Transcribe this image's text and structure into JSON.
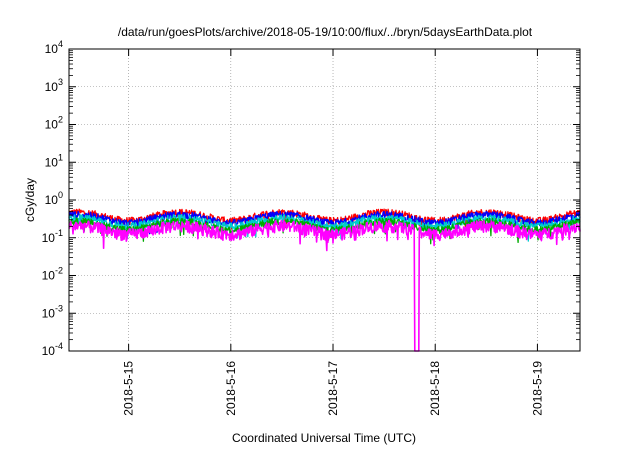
{
  "chart_data": {
    "type": "line",
    "title": "/data/run/goesPlots/archive/2018-05-19/10:00/flux/../bryn/5daysEarthData.plot",
    "xlabel": "Coordinated Universal Time (UTC)",
    "ylabel": "cGy/day",
    "yscale": "log",
    "ylim": [
      0.0001,
      10000
    ],
    "y_ticks": [
      {
        "value": 0.0001,
        "base": "10",
        "exp": "-4"
      },
      {
        "value": 0.001,
        "base": "10",
        "exp": "-3"
      },
      {
        "value": 0.01,
        "base": "10",
        "exp": "-2"
      },
      {
        "value": 0.1,
        "base": "10",
        "exp": "-1"
      },
      {
        "value": 1,
        "base": "10",
        "exp": "0"
      },
      {
        "value": 10,
        "base": "10",
        "exp": "1"
      },
      {
        "value": 100,
        "base": "10",
        "exp": "2"
      },
      {
        "value": 1000,
        "base": "10",
        "exp": "3"
      },
      {
        "value": 10000,
        "base": "10",
        "exp": "4"
      }
    ],
    "xlim": [
      "2018-05-14 10:00",
      "2018-05-19 10:00"
    ],
    "x_ticks": [
      {
        "value": "2018-05-15 00:00",
        "label": "2018-5-15"
      },
      {
        "value": "2018-05-16 00:00",
        "label": "2018-5-16"
      },
      {
        "value": "2018-05-17 00:00",
        "label": "2018-5-17"
      },
      {
        "value": "2018-05-18 00:00",
        "label": "2018-5-18"
      },
      {
        "value": "2018-05-19 00:00",
        "label": "2018-5-19"
      }
    ],
    "grid": true,
    "legend": "none",
    "series": [
      {
        "color": "#ff0000",
        "level": 0.38,
        "spread": 0.14
      },
      {
        "color": "#0000ff",
        "level": 0.33,
        "spread": 0.12
      },
      {
        "color": "#00cccc",
        "level": 0.27,
        "spread": 0.1
      },
      {
        "color": "#00aa00",
        "level": 0.22,
        "spread": 0.08
      },
      {
        "color": "#ff00ff",
        "level": 0.17,
        "spread": 0.1
      }
    ],
    "annotations": [
      {
        "series_color": "#ff00ff",
        "time": "2018-05-17 19:40",
        "value": 0.0001,
        "note": "drop to axis minimum"
      }
    ]
  }
}
